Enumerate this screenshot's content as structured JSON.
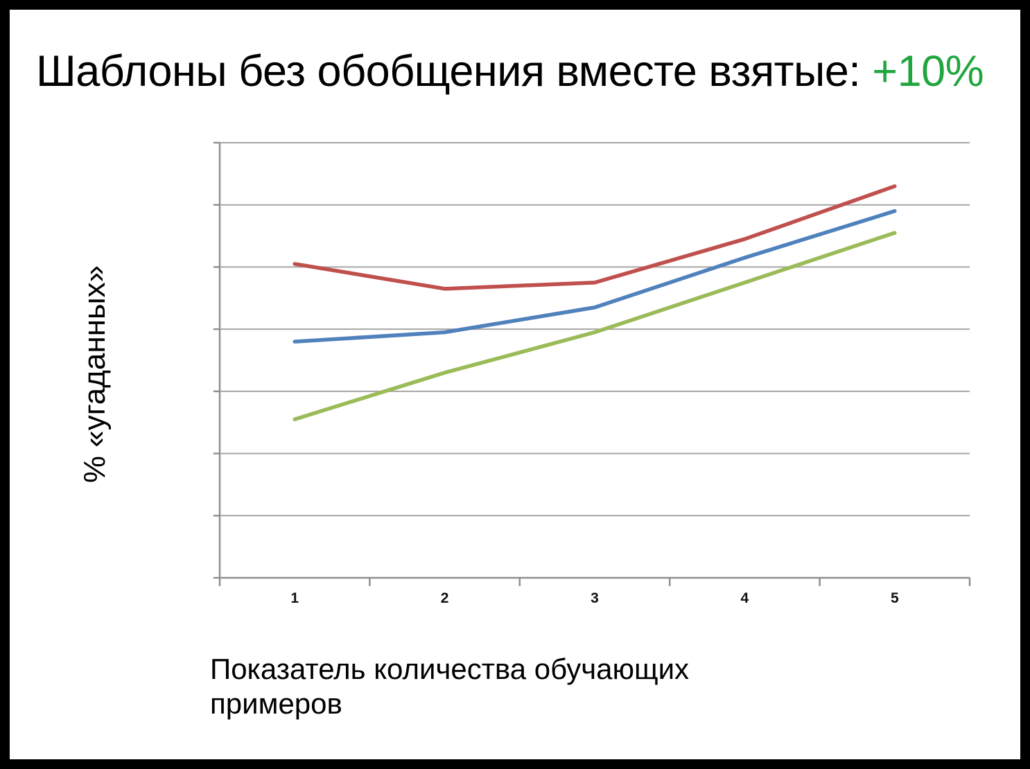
{
  "page": {
    "background": "#ffffff",
    "frame_color": "#000000"
  },
  "title": {
    "text": "Шаблоны без обобщения вместе взятые: ",
    "highlight": "+10%",
    "highlight_color": "#21A63F"
  },
  "chart_data": {
    "type": "line",
    "title": "Шаблоны без обобщения вместе взятые: +10%",
    "xlabel": "Показатель количества обучающих\nпримеров",
    "ylabel": "% «угаданных»",
    "categories": [
      "1",
      "2",
      "3",
      "4",
      "5"
    ],
    "series": [
      {
        "name": "red-line",
        "color": "#C0504D",
        "values": [
          50.5,
          46.5,
          47.5,
          54.5,
          63
        ]
      },
      {
        "name": "blue-line",
        "color": "#4F81BD",
        "values": [
          38,
          39.5,
          43.5,
          51.5,
          59
        ]
      },
      {
        "name": "green-line",
        "color": "#9BBB59",
        "values": [
          25.5,
          33,
          39.5,
          47.5,
          55.5
        ]
      }
    ],
    "ylim": [
      0,
      70
    ],
    "y_gridline_step": 10,
    "y_tick_labels_visible": false,
    "legend_position": "none",
    "grid": "horizontal",
    "gridline_color": "#a6a6a6",
    "axis_color": "#8f8f8f"
  }
}
